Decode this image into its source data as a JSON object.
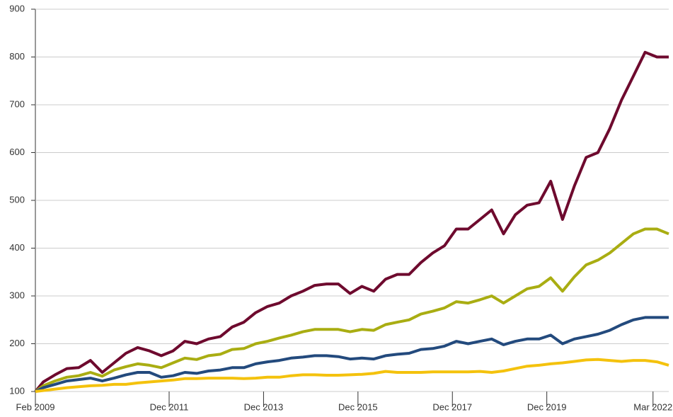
{
  "chart_data": {
    "type": "line",
    "x": [
      "2009-02",
      "2009-04",
      "2009-07",
      "2009-10",
      "2010-01",
      "2010-04",
      "2010-07",
      "2010-10",
      "2011-01",
      "2011-04",
      "2011-07",
      "2011-10",
      "2012-01",
      "2012-04",
      "2012-07",
      "2012-10",
      "2013-01",
      "2013-04",
      "2013-07",
      "2013-10",
      "2014-01",
      "2014-04",
      "2014-07",
      "2014-10",
      "2015-01",
      "2015-04",
      "2015-07",
      "2015-10",
      "2016-01",
      "2016-04",
      "2016-07",
      "2016-10",
      "2017-01",
      "2017-04",
      "2017-07",
      "2017-10",
      "2018-01",
      "2018-04",
      "2018-07",
      "2018-10",
      "2019-01",
      "2019-04",
      "2019-07",
      "2019-10",
      "2020-01",
      "2020-04",
      "2020-07",
      "2020-10",
      "2021-01",
      "2021-04",
      "2021-07",
      "2021-10",
      "2022-01",
      "2022-04",
      "2022-07"
    ],
    "series": [
      {
        "color": "#6e0a2e",
        "values": [
          100,
          120,
          135,
          148,
          150,
          165,
          140,
          160,
          180,
          192,
          185,
          175,
          185,
          205,
          200,
          210,
          215,
          235,
          245,
          265,
          278,
          285,
          300,
          310,
          322,
          325,
          325,
          305,
          320,
          310,
          335,
          345,
          345,
          370,
          390,
          405,
          440,
          440,
          460,
          480,
          430,
          470,
          490,
          495,
          540,
          460,
          530,
          590,
          600,
          650,
          710,
          760,
          810,
          800,
          800
        ]
      },
      {
        "color": "#a9ad12",
        "values": [
          100,
          112,
          122,
          130,
          133,
          140,
          132,
          145,
          152,
          158,
          155,
          150,
          160,
          170,
          167,
          175,
          178,
          188,
          190,
          200,
          205,
          212,
          218,
          225,
          230,
          230,
          230,
          225,
          230,
          228,
          240,
          245,
          250,
          262,
          268,
          275,
          288,
          285,
          292,
          300,
          285,
          300,
          315,
          320,
          338,
          310,
          340,
          365,
          375,
          390,
          410,
          430,
          440,
          440,
          430
        ]
      },
      {
        "color": "#234a7d",
        "values": [
          100,
          108,
          115,
          122,
          125,
          128,
          122,
          128,
          135,
          140,
          140,
          130,
          133,
          140,
          138,
          143,
          145,
          150,
          150,
          158,
          162,
          165,
          170,
          172,
          175,
          175,
          173,
          168,
          170,
          168,
          175,
          178,
          180,
          188,
          190,
          195,
          205,
          200,
          205,
          210,
          198,
          205,
          210,
          210,
          218,
          200,
          210,
          215,
          220,
          228,
          240,
          250,
          255,
          255,
          255
        ]
      },
      {
        "color": "#f4c20d",
        "values": [
          100,
          102,
          105,
          108,
          110,
          112,
          113,
          115,
          115,
          118,
          120,
          122,
          124,
          127,
          127,
          128,
          128,
          128,
          127,
          128,
          130,
          130,
          133,
          135,
          135,
          134,
          134,
          135,
          136,
          138,
          142,
          140,
          140,
          140,
          141,
          141,
          141,
          141,
          142,
          140,
          143,
          148,
          153,
          155,
          158,
          160,
          163,
          166,
          167,
          165,
          163,
          165,
          165,
          162,
          155
        ]
      }
    ],
    "xlim": [
      "2009-02",
      "2022-07"
    ],
    "xticks": [
      {
        "value": "2009-02",
        "label": "Feb 2009"
      },
      {
        "value": "2011-12",
        "label": "Dec 2011"
      },
      {
        "value": "2013-12",
        "label": "Dec 2013"
      },
      {
        "value": "2015-12",
        "label": "Dec 2015"
      },
      {
        "value": "2017-12",
        "label": "Dec 2017"
      },
      {
        "value": "2019-12",
        "label": "Dec 2019"
      },
      {
        "value": "2022-03",
        "label": "Mar 2022"
      }
    ],
    "ylim": [
      100,
      900
    ],
    "yticks": [
      100,
      200,
      300,
      400,
      500,
      600,
      700,
      800,
      900
    ],
    "grid": true
  }
}
